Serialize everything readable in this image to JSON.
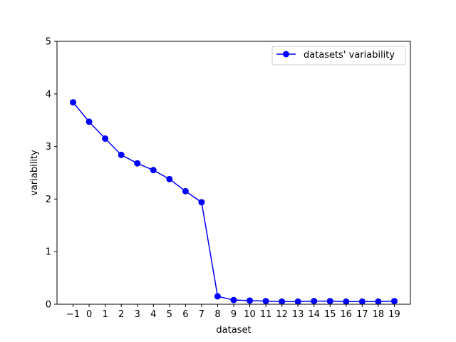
{
  "chart_data": {
    "type": "line",
    "title": "",
    "xlabel": "dataset",
    "ylabel": "variability",
    "xlim": [
      -2,
      20
    ],
    "ylim": [
      0,
      5
    ],
    "grid": false,
    "legend_position": "top-right",
    "x_tick_labels": [
      "−1",
      "0",
      "1",
      "2",
      "3",
      "4",
      "5",
      "6",
      "7",
      "8",
      "9",
      "10",
      "11",
      "12",
      "13",
      "14",
      "15",
      "16",
      "17",
      "18",
      "19"
    ],
    "y_tick_labels": [
      "0",
      "1",
      "2",
      "3",
      "4",
      "5"
    ],
    "series": [
      {
        "name": "datasets' variability",
        "color": "#0000ff",
        "marker": "circle",
        "x": [
          -1,
          0,
          1,
          2,
          3,
          4,
          5,
          6,
          7,
          8,
          9,
          10,
          11,
          12,
          13,
          14,
          15,
          16,
          17,
          18,
          19
        ],
        "y": [
          3.84,
          3.47,
          3.15,
          2.84,
          2.68,
          2.55,
          2.38,
          2.15,
          1.94,
          0.15,
          0.08,
          0.07,
          0.06,
          0.05,
          0.05,
          0.06,
          0.06,
          0.05,
          0.05,
          0.05,
          0.06
        ]
      }
    ]
  }
}
